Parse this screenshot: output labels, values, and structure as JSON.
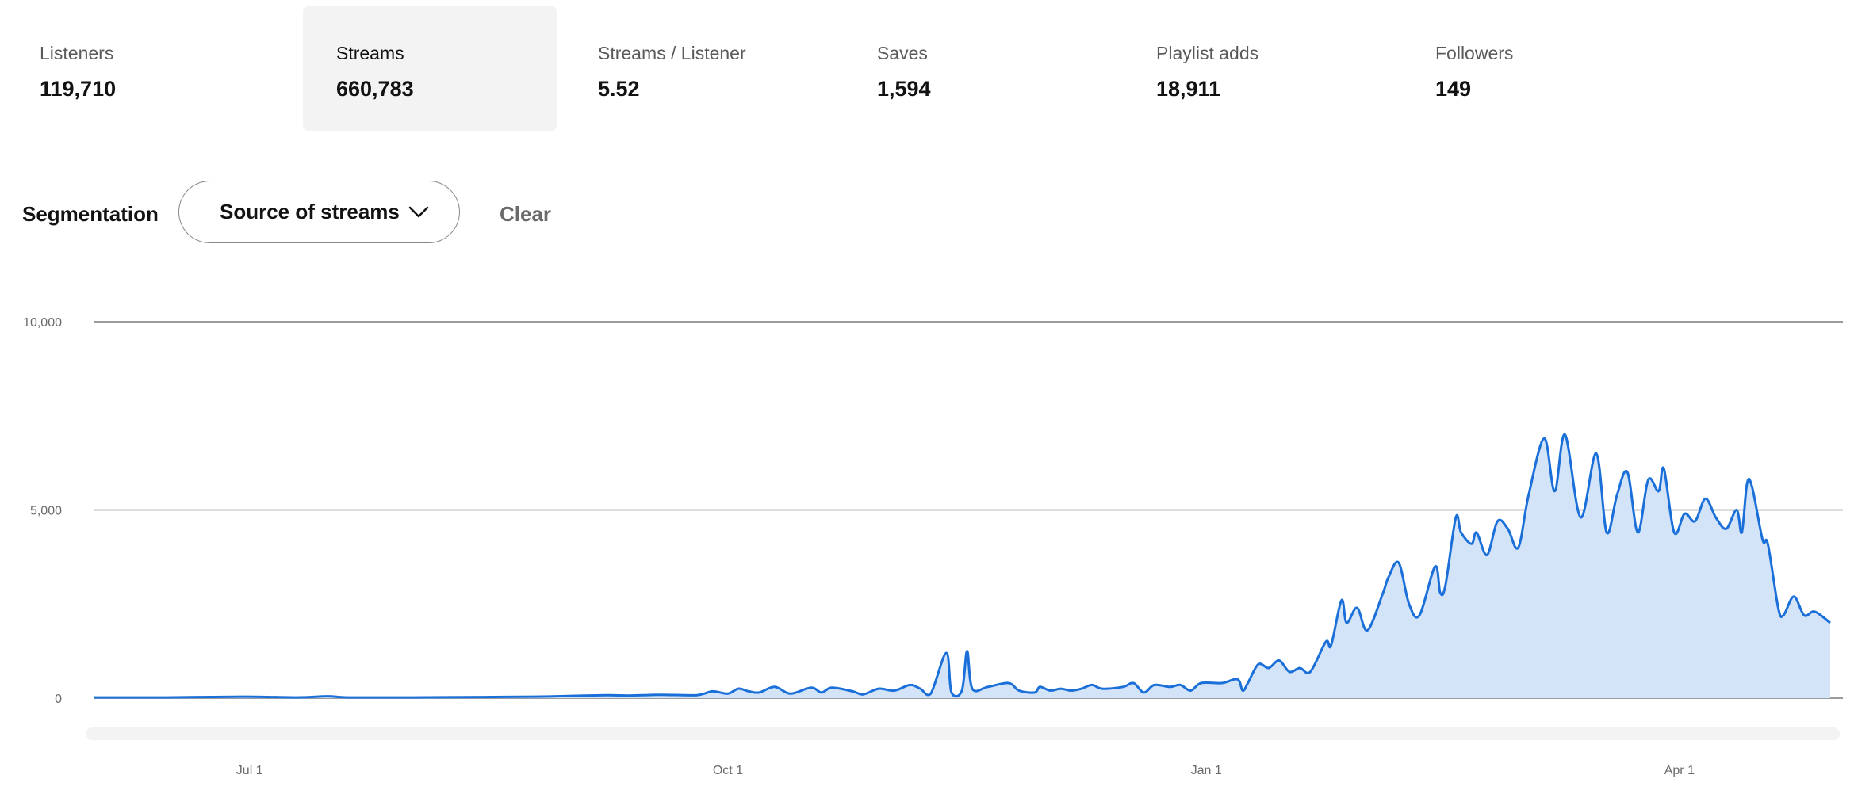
{
  "stats": [
    {
      "label": "Listeners",
      "value": "119,710",
      "selected": false
    },
    {
      "label": "Streams",
      "value": "660,783",
      "selected": true
    },
    {
      "label": "Streams / Listener",
      "value": "5.52",
      "selected": false
    },
    {
      "label": "Saves",
      "value": "1,594",
      "selected": false
    },
    {
      "label": "Playlist adds",
      "value": "18,911",
      "selected": false
    },
    {
      "label": "Followers",
      "value": "149",
      "selected": false
    }
  ],
  "segmentation": {
    "label": "Segmentation",
    "selected": "Source of streams",
    "clear_label": "Clear"
  },
  "colors": {
    "line": "#1a6fd9",
    "fill": "#d3e3f8",
    "grid": "#7a7a7a",
    "scrollbar": "#f3f3f3"
  },
  "chart_data": {
    "type": "area",
    "x_start": "2023-06-01",
    "x_end": "2024-04-30",
    "ylim": [
      0,
      10000
    ],
    "yticks": [
      {
        "value": 0,
        "label": "0"
      },
      {
        "value": 5000,
        "label": "5,000"
      },
      {
        "value": 10000,
        "label": "10,000"
      }
    ],
    "xticks": [
      {
        "date": "2023-07-01",
        "label": "Jul 1"
      },
      {
        "date": "2023-10-01",
        "label": "Oct 1"
      },
      {
        "date": "2024-01-01",
        "label": "Jan 1"
      },
      {
        "date": "2024-04-01",
        "label": "Apr 1"
      }
    ],
    "grid": true,
    "legend": "none",
    "series": [
      {
        "points": [
          [
            "2023-06-01",
            20
          ],
          [
            "2023-06-15",
            20
          ],
          [
            "2023-06-30",
            40
          ],
          [
            "2023-07-10",
            20
          ],
          [
            "2023-07-16",
            50
          ],
          [
            "2023-07-20",
            20
          ],
          [
            "2023-08-01",
            20
          ],
          [
            "2023-08-15",
            30
          ],
          [
            "2023-08-25",
            40
          ],
          [
            "2023-09-01",
            60
          ],
          [
            "2023-09-08",
            80
          ],
          [
            "2023-09-12",
            70
          ],
          [
            "2023-09-18",
            90
          ],
          [
            "2023-09-25",
            80
          ],
          [
            "2023-09-28",
            180
          ],
          [
            "2023-10-01",
            120
          ],
          [
            "2023-10-03",
            250
          ],
          [
            "2023-10-05",
            180
          ],
          [
            "2023-10-07",
            150
          ],
          [
            "2023-10-10",
            300
          ],
          [
            "2023-10-13",
            120
          ],
          [
            "2023-10-17",
            280
          ],
          [
            "2023-10-19",
            150
          ],
          [
            "2023-10-21",
            280
          ],
          [
            "2023-10-25",
            180
          ],
          [
            "2023-10-27",
            100
          ],
          [
            "2023-10-30",
            250
          ],
          [
            "2023-11-02",
            200
          ],
          [
            "2023-11-05",
            350
          ],
          [
            "2023-11-07",
            250
          ],
          [
            "2023-11-09",
            120
          ],
          [
            "2023-11-12",
            1200
          ],
          [
            "2023-11-13",
            150
          ],
          [
            "2023-11-15",
            200
          ],
          [
            "2023-11-16",
            1250
          ],
          [
            "2023-11-17",
            250
          ],
          [
            "2023-11-20",
            300
          ],
          [
            "2023-11-24",
            400
          ],
          [
            "2023-11-26",
            200
          ],
          [
            "2023-11-29",
            150
          ],
          [
            "2023-11-30",
            300
          ],
          [
            "2023-12-02",
            200
          ],
          [
            "2023-12-04",
            250
          ],
          [
            "2023-12-06",
            200
          ],
          [
            "2023-12-08",
            250
          ],
          [
            "2023-12-10",
            350
          ],
          [
            "2023-12-12",
            250
          ],
          [
            "2023-12-16",
            300
          ],
          [
            "2023-12-18",
            400
          ],
          [
            "2023-12-20",
            150
          ],
          [
            "2023-12-22",
            350
          ],
          [
            "2023-12-25",
            300
          ],
          [
            "2023-12-27",
            350
          ],
          [
            "2023-12-29",
            200
          ],
          [
            "2023-12-31",
            400
          ],
          [
            "2024-01-04",
            400
          ],
          [
            "2024-01-07",
            500
          ],
          [
            "2024-01-08",
            200
          ],
          [
            "2024-01-09",
            400
          ],
          [
            "2024-01-11",
            900
          ],
          [
            "2024-01-13",
            800
          ],
          [
            "2024-01-15",
            1000
          ],
          [
            "2024-01-17",
            700
          ],
          [
            "2024-01-19",
            800
          ],
          [
            "2024-01-21",
            700
          ],
          [
            "2024-01-24",
            1500
          ],
          [
            "2024-01-25",
            1400
          ],
          [
            "2024-01-27",
            2600
          ],
          [
            "2024-01-28",
            2000
          ],
          [
            "2024-01-30",
            2400
          ],
          [
            "2024-02-01",
            1800
          ],
          [
            "2024-02-04",
            2800
          ],
          [
            "2024-02-05",
            3200
          ],
          [
            "2024-02-07",
            3600
          ],
          [
            "2024-02-09",
            2500
          ],
          [
            "2024-02-11",
            2200
          ],
          [
            "2024-02-14",
            3500
          ],
          [
            "2024-02-15",
            2800
          ],
          [
            "2024-02-16",
            3000
          ],
          [
            "2024-02-18",
            4800
          ],
          [
            "2024-02-19",
            4400
          ],
          [
            "2024-02-21",
            4100
          ],
          [
            "2024-02-22",
            4400
          ],
          [
            "2024-02-24",
            3800
          ],
          [
            "2024-02-26",
            4700
          ],
          [
            "2024-02-28",
            4500
          ],
          [
            "2024-03-01",
            4000
          ],
          [
            "2024-03-03",
            5400
          ],
          [
            "2024-03-06",
            6900
          ],
          [
            "2024-03-08",
            5500
          ],
          [
            "2024-03-10",
            7000
          ],
          [
            "2024-03-13",
            4800
          ],
          [
            "2024-03-16",
            6500
          ],
          [
            "2024-03-18",
            4400
          ],
          [
            "2024-03-20",
            5400
          ],
          [
            "2024-03-22",
            6000
          ],
          [
            "2024-03-24",
            4400
          ],
          [
            "2024-03-26",
            5800
          ],
          [
            "2024-03-28",
            5500
          ],
          [
            "2024-03-29",
            6100
          ],
          [
            "2024-03-31",
            4400
          ],
          [
            "2024-04-02",
            4900
          ],
          [
            "2024-04-04",
            4700
          ],
          [
            "2024-04-06",
            5300
          ],
          [
            "2024-04-08",
            4800
          ],
          [
            "2024-04-10",
            4500
          ],
          [
            "2024-04-12",
            5000
          ],
          [
            "2024-04-13",
            4400
          ],
          [
            "2024-04-14",
            5700
          ],
          [
            "2024-04-15",
            5600
          ],
          [
            "2024-04-17",
            4200
          ],
          [
            "2024-04-18",
            4100
          ],
          [
            "2024-04-20",
            2400
          ],
          [
            "2024-04-21",
            2200
          ],
          [
            "2024-04-23",
            2700
          ],
          [
            "2024-04-25",
            2200
          ],
          [
            "2024-04-27",
            2300
          ],
          [
            "2024-04-30",
            2000
          ]
        ]
      }
    ]
  }
}
